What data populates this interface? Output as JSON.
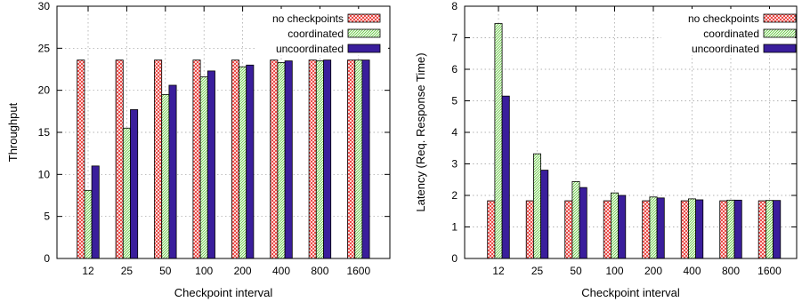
{
  "patterns": {
    "no_checkpoints": {
      "bg": "#ffffff",
      "line": "#e8302c"
    },
    "coordinated": {
      "bg": "#ffffff",
      "line": "#5fc63a"
    },
    "uncoordinated": {
      "fill": "#3a1e9c"
    }
  },
  "chart_data": [
    {
      "type": "bar",
      "xlabel": "Checkpoint interval",
      "ylabel": "Throughput",
      "ylim": [
        0,
        30
      ],
      "yticks": [
        "0",
        "5",
        "10",
        "15",
        "20",
        "25",
        "30"
      ],
      "categories": [
        "12",
        "25",
        "50",
        "100",
        "200",
        "400",
        "800",
        "1600"
      ],
      "legend_position": "top-right",
      "grid": true,
      "series": [
        {
          "name": "no checkpoints",
          "key": "no_checkpoints",
          "values": [
            23.6,
            23.6,
            23.6,
            23.6,
            23.6,
            23.6,
            23.6,
            23.6
          ]
        },
        {
          "name": "coordinated",
          "key": "coordinated",
          "values": [
            8.1,
            15.5,
            19.5,
            21.6,
            22.8,
            23.3,
            23.5,
            23.6
          ]
        },
        {
          "name": "uncoordinated",
          "key": "uncoordinated",
          "values": [
            11.0,
            17.7,
            20.6,
            22.3,
            23.0,
            23.5,
            23.6,
            23.6
          ]
        }
      ]
    },
    {
      "type": "bar",
      "xlabel": "Checkpoint interval",
      "ylabel": "Latency (Req. Response Time)",
      "ylim": [
        0,
        8
      ],
      "yticks": [
        "0",
        "1",
        "2",
        "3",
        "4",
        "5",
        "6",
        "7",
        "8"
      ],
      "categories": [
        "12",
        "25",
        "50",
        "100",
        "200",
        "400",
        "800",
        "1600"
      ],
      "legend_position": "top-right",
      "grid": true,
      "series": [
        {
          "name": "no checkpoints",
          "key": "no_checkpoints",
          "values": [
            1.83,
            1.83,
            1.83,
            1.83,
            1.83,
            1.83,
            1.83,
            1.83
          ]
        },
        {
          "name": "coordinated",
          "key": "coordinated",
          "values": [
            7.45,
            3.32,
            2.44,
            2.08,
            1.95,
            1.89,
            1.85,
            1.84
          ]
        },
        {
          "name": "uncoordinated",
          "key": "uncoordinated",
          "values": [
            5.15,
            2.8,
            2.25,
            2.0,
            1.92,
            1.86,
            1.85,
            1.84
          ]
        }
      ]
    }
  ]
}
